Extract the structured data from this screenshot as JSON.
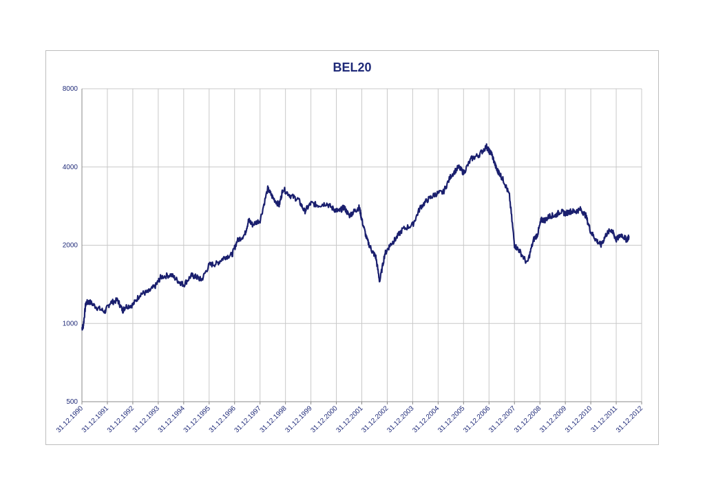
{
  "chart_data": {
    "type": "line",
    "title": "BEL20",
    "xlabel": "",
    "ylabel": "",
    "y_scale": "log",
    "ylim": [
      500,
      8000
    ],
    "yticks": [
      500,
      1000,
      2000,
      4000,
      8000
    ],
    "xlim": [
      1990.997,
      2012.997
    ],
    "xticks": [
      "31.12.1990",
      "31.12.1991",
      "31.12.1992",
      "31.12.1993",
      "31.12.1994",
      "31.12.1995",
      "31.12.1996",
      "31.12.1997",
      "31.12.1998",
      "31.12.1999",
      "31.12.2000",
      "31.12.2001",
      "31.12.2002",
      "31.12.2003",
      "31.12.2004",
      "31.12.2005",
      "31.12.2006",
      "31.12.2007",
      "31.12.2008",
      "31.12.2009",
      "31.12.2010",
      "31.12.2011",
      "31.12.2012"
    ],
    "grid": true,
    "legend": "none",
    "line_color": "#1a1f6e",
    "series": [
      {
        "x": [
          1991.0,
          1991.05,
          1991.15,
          1991.3,
          1991.6,
          1991.9,
          1992.1,
          1992.4,
          1992.6,
          1992.7,
          1993.0,
          1993.3,
          1993.6,
          1993.9,
          1994.1,
          1994.5,
          1994.8,
          1995.0,
          1995.3,
          1995.5,
          1995.7,
          1996.0,
          1996.3,
          1996.6,
          1996.9,
          1997.1,
          1997.4,
          1997.55,
          1997.7,
          1998.0,
          1998.3,
          1998.5,
          1998.75,
          1998.9,
          1999.2,
          1999.5,
          1999.75,
          2000.0,
          2000.3,
          2000.6,
          2000.9,
          2001.1,
          2001.3,
          2001.5,
          2001.7,
          2001.9,
          2002.0,
          2002.2,
          2002.4,
          2002.55,
          2002.7,
          2002.9,
          2003.1,
          2003.3,
          2003.6,
          2004.0,
          2004.3,
          2004.6,
          2004.9,
          2005.2,
          2005.5,
          2005.8,
          2006.0,
          2006.3,
          2006.6,
          2006.9,
          2007.0,
          2007.1,
          2007.3,
          2007.4,
          2007.6,
          2007.8,
          2008.0,
          2008.2,
          2008.5,
          2008.75,
          2008.9,
          2009.05,
          2009.2,
          2009.4,
          2009.6,
          2009.8,
          2010.0,
          2010.2,
          2010.4,
          2010.6,
          2010.8,
          2011.0,
          2011.2,
          2011.4,
          2011.6,
          2011.8,
          2011.9,
          2012.0,
          2012.2,
          2012.4,
          2012.5
        ],
        "y": [
          960,
          980,
          1200,
          1210,
          1150,
          1110,
          1200,
          1230,
          1120,
          1160,
          1180,
          1300,
          1320,
          1400,
          1510,
          1540,
          1450,
          1410,
          1530,
          1510,
          1470,
          1680,
          1700,
          1800,
          1840,
          2080,
          2200,
          2500,
          2400,
          2500,
          3300,
          3050,
          2850,
          3300,
          3100,
          3000,
          2700,
          2900,
          2850,
          2900,
          2750,
          2700,
          2800,
          2600,
          2700,
          2800,
          2500,
          2100,
          1900,
          1800,
          1450,
          1850,
          2000,
          2100,
          2300,
          2400,
          2800,
          3000,
          3150,
          3200,
          3700,
          4000,
          3800,
          4300,
          4450,
          4800,
          4600,
          4500,
          3900,
          3800,
          3500,
          3100,
          2000,
          1900,
          1700,
          2100,
          2200,
          2500,
          2500,
          2600,
          2600,
          2700,
          2650,
          2700,
          2700,
          2750,
          2600,
          2250,
          2100,
          2000,
          2200,
          2300,
          2200,
          2100,
          2200,
          2100,
          2150
        ]
      }
    ]
  }
}
